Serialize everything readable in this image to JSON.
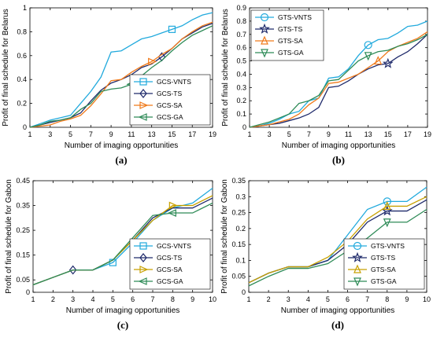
{
  "chart_data": [
    {
      "type": "line",
      "caption": "(a)",
      "xlabel": "Number of imaging opportunities",
      "ylabel": "Profit of final schedule for Belarus",
      "xlim": [
        1,
        19
      ],
      "ylim": [
        0,
        1
      ],
      "xticks": [
        "1",
        "3",
        "5",
        "7",
        "9",
        "11",
        "13",
        "15",
        "17",
        "19"
      ],
      "yticks": [
        "0",
        "0.2",
        "0.4",
        "0.6",
        "0.8",
        "1"
      ],
      "legend_position": "bottom-right",
      "series": [
        {
          "name": "GCS-VNTS",
          "color": "#22aadd",
          "marker": "square",
          "x": [
            1,
            2,
            3,
            4,
            5,
            6,
            7,
            8,
            9,
            10,
            11,
            12,
            13,
            14,
            15,
            16,
            17,
            18,
            19
          ],
          "y": [
            0,
            0.03,
            0.06,
            0.08,
            0.1,
            0.2,
            0.3,
            0.42,
            0.63,
            0.64,
            0.69,
            0.74,
            0.76,
            0.79,
            0.82,
            0.85,
            0.9,
            0.94,
            0.96
          ],
          "markers_at": [
            15
          ]
        },
        {
          "name": "GCS-TS",
          "color": "#1f2a6b",
          "marker": "diamond",
          "x": [
            1,
            2,
            3,
            4,
            5,
            6,
            7,
            8,
            9,
            10,
            11,
            12,
            13,
            14,
            15,
            16,
            17,
            18,
            19
          ],
          "y": [
            0,
            0.02,
            0.04,
            0.06,
            0.08,
            0.12,
            0.22,
            0.31,
            0.37,
            0.4,
            0.44,
            0.5,
            0.53,
            0.59,
            0.66,
            0.74,
            0.79,
            0.84,
            0.87
          ],
          "markers_at": [
            14
          ]
        },
        {
          "name": "GCS-SA",
          "color": "#f07a1a",
          "marker": "triangle-right",
          "x": [
            1,
            2,
            3,
            4,
            5,
            6,
            7,
            8,
            9,
            10,
            11,
            12,
            13,
            14,
            15,
            16,
            17,
            18,
            19
          ],
          "y": [
            0,
            0.01,
            0.02,
            0.05,
            0.07,
            0.1,
            0.18,
            0.28,
            0.39,
            0.4,
            0.46,
            0.51,
            0.55,
            0.61,
            0.66,
            0.74,
            0.8,
            0.85,
            0.88
          ],
          "markers_at": [
            13
          ]
        },
        {
          "name": "GCS-GA",
          "color": "#2e8b57",
          "marker": "triangle-left",
          "x": [
            1,
            2,
            3,
            4,
            5,
            6,
            7,
            8,
            9,
            10,
            11,
            12,
            13,
            14,
            15,
            16,
            17,
            18,
            19
          ],
          "y": [
            0,
            0.02,
            0.05,
            0.06,
            0.08,
            0.15,
            0.2,
            0.3,
            0.32,
            0.33,
            0.36,
            0.43,
            0.5,
            0.56,
            0.64,
            0.71,
            0.77,
            0.81,
            0.85
          ],
          "markers_at": [
            11
          ]
        }
      ]
    },
    {
      "type": "line",
      "caption": "(b)",
      "xlabel": "Number of imaging opportunities",
      "ylabel": "Profit of final schedule for Belarus",
      "xlim": [
        1,
        19
      ],
      "ylim": [
        0,
        0.9
      ],
      "xticks": [
        "1",
        "3",
        "5",
        "7",
        "9",
        "11",
        "13",
        "15",
        "17",
        "19"
      ],
      "yticks": [
        "0",
        "0.1",
        "0.2",
        "0.3",
        "0.4",
        "0.5",
        "0.6",
        "0.7",
        "0.8",
        "0.9"
      ],
      "legend_position": "top-left",
      "series": [
        {
          "name": "GTS-VNTS",
          "color": "#22aadd",
          "marker": "circle",
          "x": [
            1,
            2,
            3,
            4,
            5,
            6,
            7,
            8,
            9,
            10,
            11,
            12,
            13,
            14,
            15,
            16,
            17,
            18,
            19
          ],
          "y": [
            0,
            0.01,
            0.03,
            0.06,
            0.1,
            0.12,
            0.2,
            0.22,
            0.37,
            0.38,
            0.44,
            0.54,
            0.62,
            0.66,
            0.67,
            0.71,
            0.76,
            0.77,
            0.8
          ],
          "markers_at": [
            13
          ]
        },
        {
          "name": "GTS-TS",
          "color": "#1f2a6b",
          "marker": "star",
          "x": [
            1,
            2,
            3,
            4,
            5,
            6,
            7,
            8,
            9,
            10,
            11,
            12,
            13,
            14,
            15,
            16,
            17,
            18,
            19
          ],
          "y": [
            0,
            0.01,
            0.02,
            0.03,
            0.05,
            0.07,
            0.1,
            0.15,
            0.3,
            0.31,
            0.35,
            0.4,
            0.44,
            0.47,
            0.48,
            0.53,
            0.57,
            0.63,
            0.7
          ],
          "markers_at": [
            15
          ]
        },
        {
          "name": "GTS-SA",
          "color": "#f07a1a",
          "marker": "triangle-up",
          "x": [
            1,
            2,
            3,
            4,
            5,
            6,
            7,
            8,
            9,
            10,
            11,
            12,
            13,
            14,
            15,
            16,
            17,
            18,
            19
          ],
          "y": [
            0,
            0.01,
            0.02,
            0.04,
            0.06,
            0.1,
            0.17,
            0.22,
            0.33,
            0.34,
            0.37,
            0.4,
            0.45,
            0.5,
            0.57,
            0.61,
            0.64,
            0.67,
            0.72
          ],
          "markers_at": [
            14
          ]
        },
        {
          "name": "GTS-GA",
          "color": "#2e8b57",
          "marker": "triangle-down",
          "x": [
            1,
            2,
            3,
            4,
            5,
            6,
            7,
            8,
            9,
            10,
            11,
            12,
            13,
            14,
            15,
            16,
            17,
            18,
            19
          ],
          "y": [
            0,
            0.02,
            0.04,
            0.07,
            0.1,
            0.18,
            0.2,
            0.24,
            0.35,
            0.36,
            0.43,
            0.5,
            0.54,
            0.57,
            0.58,
            0.61,
            0.63,
            0.66,
            0.7
          ],
          "markers_at": [
            13
          ]
        }
      ]
    },
    {
      "type": "line",
      "caption": "(c)",
      "xlabel": "Number of imaging opportunities",
      "ylabel": "Profit of final schedule for Gabon",
      "xlim": [
        1,
        10
      ],
      "ylim": [
        0,
        0.45
      ],
      "xticks": [
        "1",
        "2",
        "3",
        "4",
        "5",
        "6",
        "7",
        "8",
        "9",
        "10"
      ],
      "yticks": [
        "0",
        "0.05",
        "0.15",
        "0.25",
        "0.35",
        "0.45"
      ],
      "ytick_values": [
        0,
        0.05,
        0.15,
        0.25,
        0.35,
        0.45
      ],
      "legend_position": "bottom-right",
      "series": [
        {
          "name": "GCS-VNTS",
          "color": "#22aadd",
          "marker": "square",
          "x": [
            1,
            2,
            3,
            4,
            5,
            6,
            7,
            8,
            9,
            10
          ],
          "y": [
            0.03,
            0.06,
            0.09,
            0.09,
            0.12,
            0.2,
            0.29,
            0.34,
            0.36,
            0.42
          ],
          "markers_at": [
            5
          ]
        },
        {
          "name": "GCS-TS",
          "color": "#1f2a6b",
          "marker": "diamond",
          "x": [
            1,
            2,
            3,
            4,
            5,
            6,
            7,
            8,
            9,
            10
          ],
          "y": [
            0.03,
            0.06,
            0.09,
            0.09,
            0.13,
            0.21,
            0.3,
            0.34,
            0.34,
            0.38
          ],
          "markers_at": [
            3
          ]
        },
        {
          "name": "GCS-SA",
          "color": "#c8a000",
          "marker": "triangle-right",
          "x": [
            1,
            2,
            3,
            4,
            5,
            6,
            7,
            8,
            9,
            10
          ],
          "y": [
            0.03,
            0.06,
            0.09,
            0.09,
            0.13,
            0.21,
            0.29,
            0.35,
            0.35,
            0.39
          ],
          "markers_at": [
            8
          ]
        },
        {
          "name": "GCS-GA",
          "color": "#2e8b57",
          "marker": "triangle-left",
          "x": [
            1,
            2,
            3,
            4,
            5,
            6,
            7,
            8,
            9,
            10
          ],
          "y": [
            0.03,
            0.06,
            0.09,
            0.09,
            0.13,
            0.22,
            0.31,
            0.32,
            0.32,
            0.36
          ],
          "markers_at": [
            8
          ]
        }
      ]
    },
    {
      "type": "line",
      "caption": "(d)",
      "xlabel": "Number of imaging opportunities",
      "ylabel": "Profit of final schedule for Gabon",
      "xlim": [
        1,
        10
      ],
      "ylim": [
        0,
        0.35
      ],
      "xticks": [
        "1",
        "2",
        "3",
        "4",
        "5",
        "6",
        "7",
        "8",
        "9",
        "10"
      ],
      "yticks": [
        "0",
        "0.05",
        "0.1",
        "0.15",
        "0.2",
        "0.25",
        "0.3",
        "0.35"
      ],
      "legend_position": "bottom-right",
      "series": [
        {
          "name": "GTS-VNTS",
          "color": "#22aadd",
          "marker": "circle",
          "x": [
            1,
            2,
            3,
            4,
            5,
            6,
            7,
            8,
            9,
            10
          ],
          "y": [
            0.03,
            0.06,
            0.08,
            0.08,
            0.1,
            0.18,
            0.26,
            0.285,
            0.285,
            0.33
          ],
          "markers_at": [
            8
          ]
        },
        {
          "name": "GTS-TS",
          "color": "#1f2a6b",
          "marker": "star",
          "x": [
            1,
            2,
            3,
            4,
            5,
            6,
            7,
            8,
            9,
            10
          ],
          "y": [
            0.03,
            0.06,
            0.08,
            0.08,
            0.1,
            0.15,
            0.22,
            0.255,
            0.255,
            0.29
          ],
          "markers_at": [
            8
          ]
        },
        {
          "name": "GTS-SA",
          "color": "#c8a000",
          "marker": "triangle-up",
          "x": [
            1,
            2,
            3,
            4,
            5,
            6,
            7,
            8,
            9,
            10
          ],
          "y": [
            0.03,
            0.06,
            0.08,
            0.08,
            0.11,
            0.16,
            0.23,
            0.27,
            0.27,
            0.3
          ],
          "markers_at": [
            8
          ]
        },
        {
          "name": "GTS-GA",
          "color": "#2e8b57",
          "marker": "triangle-down",
          "x": [
            1,
            2,
            3,
            4,
            5,
            6,
            7,
            8,
            9,
            10
          ],
          "y": [
            0.02,
            0.05,
            0.075,
            0.075,
            0.09,
            0.13,
            0.17,
            0.22,
            0.22,
            0.26
          ],
          "markers_at": [
            8
          ]
        }
      ]
    }
  ]
}
